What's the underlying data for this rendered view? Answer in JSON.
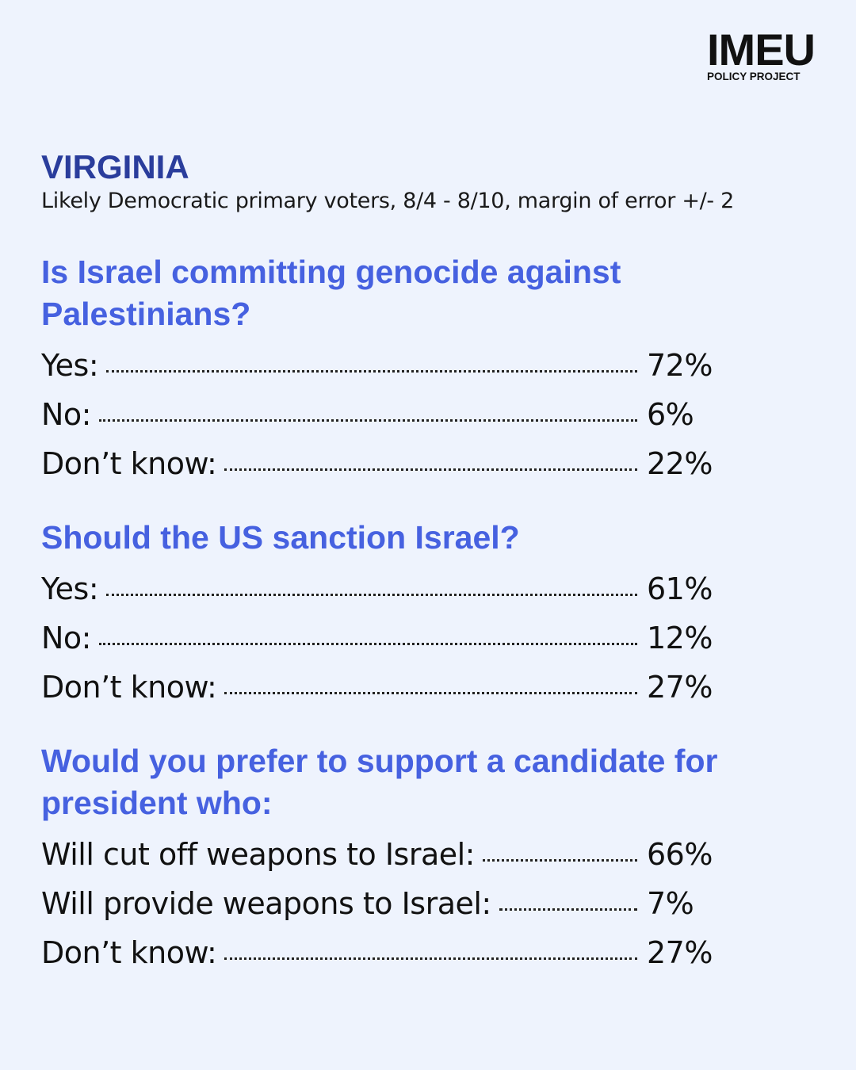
{
  "logo": {
    "name": "IMEU",
    "tagline": "POLICY PROJECT"
  },
  "header": {
    "title": "VIRGINIA",
    "subtitle": "Likely Democratic primary voters, 8/4 - 8/10, margin of error +/- 2"
  },
  "questions": [
    {
      "text": "Is Israel committing genocide against Palestinians?",
      "answers": [
        {
          "label": "Yes:",
          "value": "72%"
        },
        {
          "label": "No:",
          "value": "6%"
        },
        {
          "label": "Don’t know:",
          "value": "22%"
        }
      ]
    },
    {
      "text": "Should the US sanction Israel?",
      "answers": [
        {
          "label": "Yes:",
          "value": "61%"
        },
        {
          "label": "No:",
          "value": "12%"
        },
        {
          "label": "Don’t know:",
          "value": "27%"
        }
      ]
    },
    {
      "text": "Would you prefer to support a candidate for president who:",
      "answers": [
        {
          "label": "Will cut off weapons to Israel:",
          "value": "66%"
        },
        {
          "label": "Will provide weapons to Israel:",
          "value": "7%"
        },
        {
          "label": "Don’t know:",
          "value": "27%"
        }
      ]
    }
  ]
}
